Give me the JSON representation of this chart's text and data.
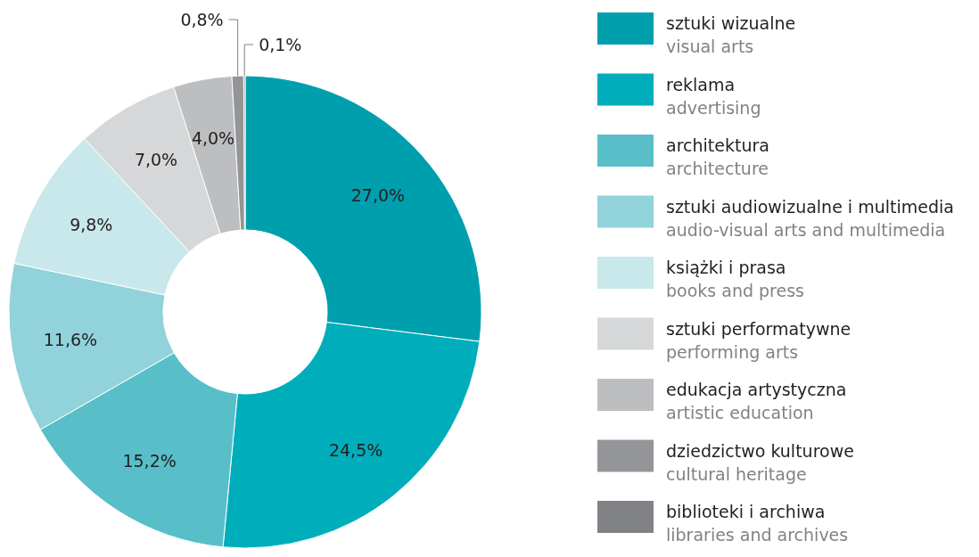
{
  "chart_data": {
    "type": "donut",
    "categories": [
      "sztuki wizualne\nvisual arts",
      "reklama\nadvertising",
      "architektura\narchitecture",
      "sztuki audiowizualne i multimedia\naudio-visual arts and multimedia",
      "książki i prasa\nbooks and press",
      "sztuki performatywne\nperforming arts",
      "edukacja artystyczna\nartistic education",
      "dziedzictwo kulturowe\ncultural heritage",
      "biblioteki i archiwa\nlibraries and archives"
    ],
    "values": [
      27.0,
      24.5,
      15.2,
      11.6,
      9.8,
      7.0,
      4.0,
      0.8,
      0.1
    ],
    "value_labels": [
      "27,0%",
      "24,5%",
      "15,2%",
      "11,6%",
      "9,8%",
      "7,0%",
      "4,0%",
      "0,8%",
      "0,1%"
    ],
    "colors": [
      "#009fae",
      "#00adbb",
      "#58bfc9",
      "#91d2db",
      "#c8e8eb",
      "#d6d7d9",
      "#bcbec0",
      "#939598",
      "#808285"
    ],
    "legend": "right"
  }
}
